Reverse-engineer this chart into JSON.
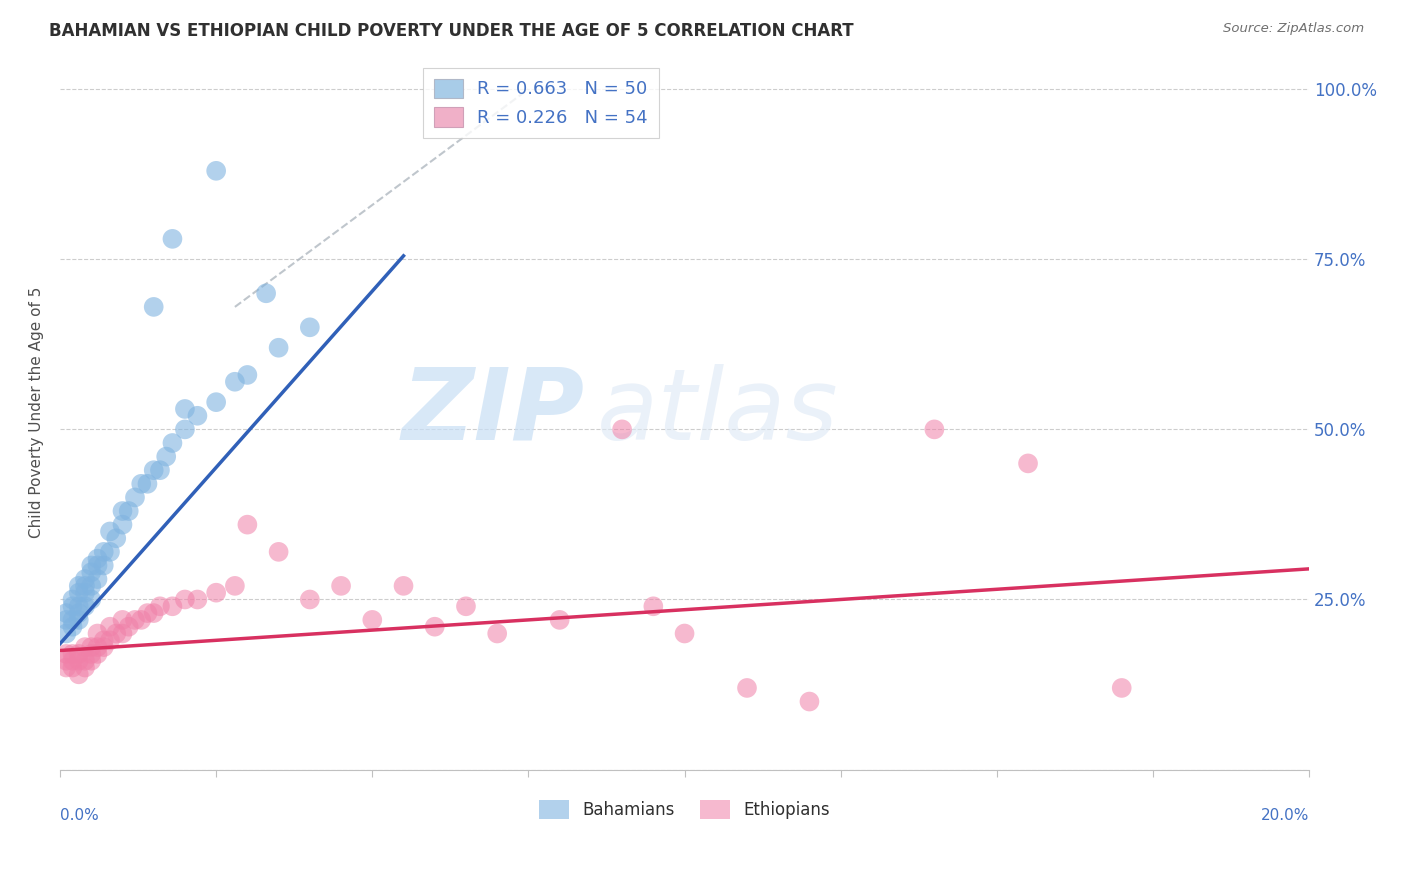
{
  "title": "BAHAMIAN VS ETHIOPIAN CHILD POVERTY UNDER THE AGE OF 5 CORRELATION CHART",
  "source": "Source: ZipAtlas.com",
  "ylabel": "Child Poverty Under the Age of 5",
  "right_yticklabels": [
    "",
    "25.0%",
    "50.0%",
    "75.0%",
    "100.0%"
  ],
  "legend_text_color": "#4472c4",
  "blue_scatter_color": "#7fb3e0",
  "pink_scatter_color": "#f080a8",
  "blue_line_color": "#3060b8",
  "pink_line_color": "#d83060",
  "identity_line_color": "#b0b8c0",
  "xlim": [
    0.0,
    0.2
  ],
  "ylim": [
    0.0,
    1.05
  ],
  "watermark": "ZIPatlas",
  "background_color": "#ffffff",
  "grid_color": "#c8c8c8",
  "blue_line_x0": 0.0,
  "blue_line_y0": 0.185,
  "blue_line_x1": 0.055,
  "blue_line_y1": 0.755,
  "pink_line_x0": 0.0,
  "pink_line_y0": 0.175,
  "pink_line_x1": 0.2,
  "pink_line_y1": 0.295,
  "diag_line_x0": 0.028,
  "diag_line_y0": 0.68,
  "diag_line_x1": 0.075,
  "diag_line_y1": 1.0,
  "bahamian_points": [
    [
      0.001,
      0.22
    ],
    [
      0.001,
      0.2
    ],
    [
      0.001,
      0.23
    ],
    [
      0.002,
      0.21
    ],
    [
      0.002,
      0.22
    ],
    [
      0.002,
      0.24
    ],
    [
      0.002,
      0.25
    ],
    [
      0.003,
      0.22
    ],
    [
      0.003,
      0.23
    ],
    [
      0.003,
      0.24
    ],
    [
      0.003,
      0.26
    ],
    [
      0.003,
      0.27
    ],
    [
      0.004,
      0.24
    ],
    [
      0.004,
      0.26
    ],
    [
      0.004,
      0.27
    ],
    [
      0.004,
      0.28
    ],
    [
      0.005,
      0.25
    ],
    [
      0.005,
      0.27
    ],
    [
      0.005,
      0.29
    ],
    [
      0.005,
      0.3
    ],
    [
      0.006,
      0.28
    ],
    [
      0.006,
      0.3
    ],
    [
      0.006,
      0.31
    ],
    [
      0.007,
      0.3
    ],
    [
      0.007,
      0.32
    ],
    [
      0.008,
      0.32
    ],
    [
      0.008,
      0.35
    ],
    [
      0.009,
      0.34
    ],
    [
      0.01,
      0.36
    ],
    [
      0.01,
      0.38
    ],
    [
      0.011,
      0.38
    ],
    [
      0.012,
      0.4
    ],
    [
      0.013,
      0.42
    ],
    [
      0.014,
      0.42
    ],
    [
      0.015,
      0.44
    ],
    [
      0.016,
      0.44
    ],
    [
      0.017,
      0.46
    ],
    [
      0.018,
      0.48
    ],
    [
      0.02,
      0.5
    ],
    [
      0.022,
      0.52
    ],
    [
      0.025,
      0.54
    ],
    [
      0.028,
      0.57
    ],
    [
      0.03,
      0.58
    ],
    [
      0.035,
      0.62
    ],
    [
      0.04,
      0.65
    ],
    [
      0.015,
      0.68
    ],
    [
      0.02,
      0.53
    ],
    [
      0.025,
      0.88
    ],
    [
      0.018,
      0.78
    ],
    [
      0.033,
      0.7
    ]
  ],
  "ethiopian_points": [
    [
      0.001,
      0.17
    ],
    [
      0.001,
      0.16
    ],
    [
      0.001,
      0.15
    ],
    [
      0.002,
      0.17
    ],
    [
      0.002,
      0.15
    ],
    [
      0.002,
      0.16
    ],
    [
      0.003,
      0.14
    ],
    [
      0.003,
      0.16
    ],
    [
      0.003,
      0.17
    ],
    [
      0.004,
      0.15
    ],
    [
      0.004,
      0.16
    ],
    [
      0.004,
      0.18
    ],
    [
      0.005,
      0.16
    ],
    [
      0.005,
      0.17
    ],
    [
      0.005,
      0.18
    ],
    [
      0.006,
      0.17
    ],
    [
      0.006,
      0.18
    ],
    [
      0.006,
      0.2
    ],
    [
      0.007,
      0.18
    ],
    [
      0.007,
      0.19
    ],
    [
      0.008,
      0.19
    ],
    [
      0.008,
      0.21
    ],
    [
      0.009,
      0.2
    ],
    [
      0.01,
      0.2
    ],
    [
      0.01,
      0.22
    ],
    [
      0.011,
      0.21
    ],
    [
      0.012,
      0.22
    ],
    [
      0.013,
      0.22
    ],
    [
      0.014,
      0.23
    ],
    [
      0.015,
      0.23
    ],
    [
      0.016,
      0.24
    ],
    [
      0.018,
      0.24
    ],
    [
      0.02,
      0.25
    ],
    [
      0.022,
      0.25
    ],
    [
      0.025,
      0.26
    ],
    [
      0.028,
      0.27
    ],
    [
      0.03,
      0.36
    ],
    [
      0.035,
      0.32
    ],
    [
      0.04,
      0.25
    ],
    [
      0.045,
      0.27
    ],
    [
      0.05,
      0.22
    ],
    [
      0.055,
      0.27
    ],
    [
      0.06,
      0.21
    ],
    [
      0.065,
      0.24
    ],
    [
      0.07,
      0.2
    ],
    [
      0.08,
      0.22
    ],
    [
      0.09,
      0.5
    ],
    [
      0.095,
      0.24
    ],
    [
      0.1,
      0.2
    ],
    [
      0.11,
      0.12
    ],
    [
      0.12,
      0.1
    ],
    [
      0.14,
      0.5
    ],
    [
      0.155,
      0.45
    ],
    [
      0.17,
      0.12
    ]
  ]
}
